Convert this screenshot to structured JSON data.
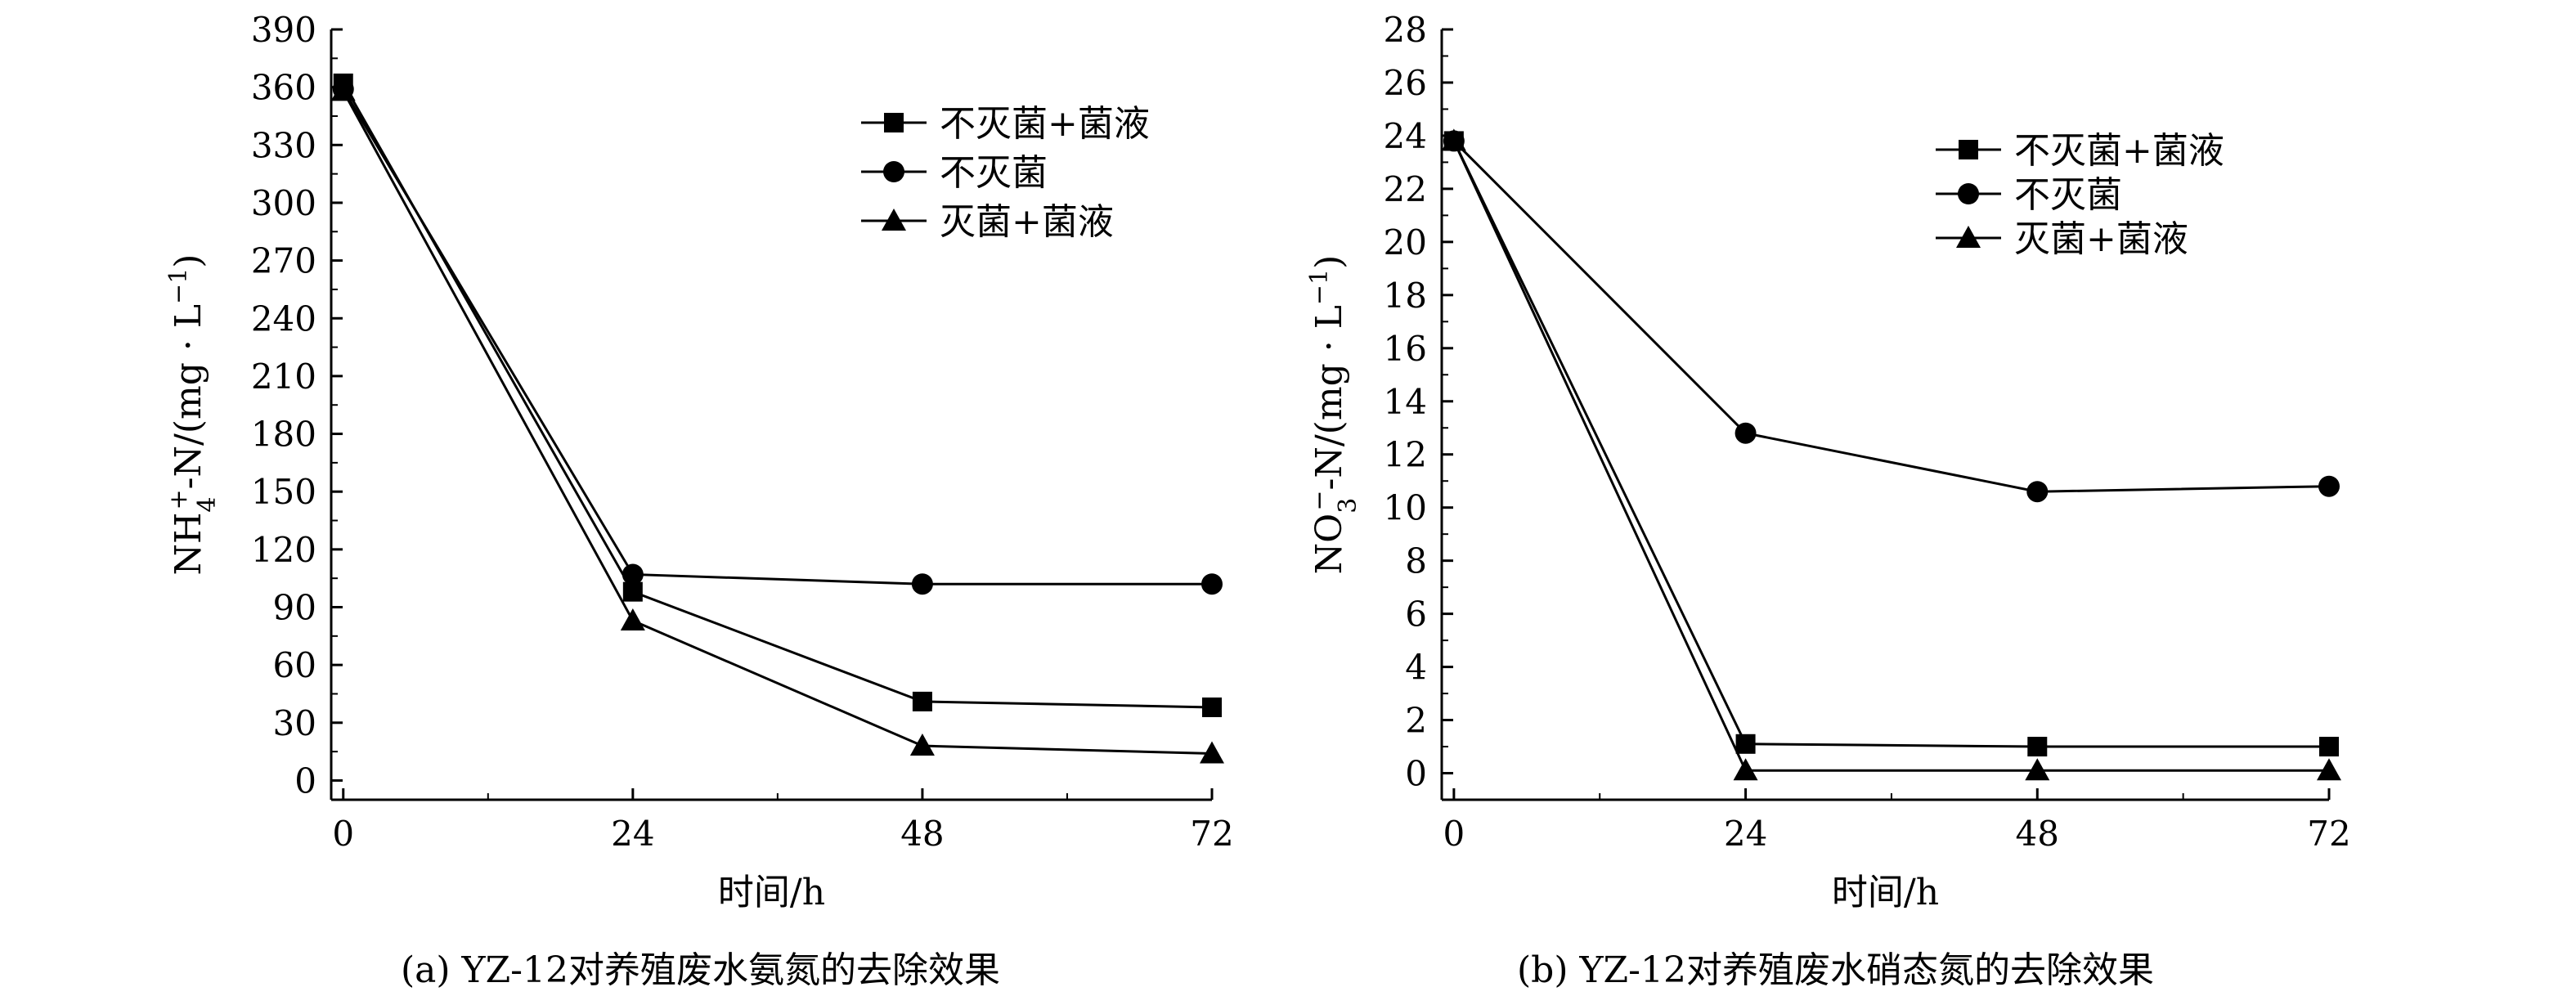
{
  "chart_data": [
    {
      "type": "line",
      "caption": "(a) YZ-12对养殖废水氨氮的去除效果",
      "xlabel": "时间/h",
      "ylabel_main": "NH",
      "ylabel_sub": "4",
      "ylabel_sup": "+",
      "ylabel_rest": "-N/(mg · L",
      "ylabel_unit_sup": "−1",
      "ylabel_close": ")",
      "xticks": [
        0,
        24,
        48,
        72
      ],
      "yticks": [
        0,
        30,
        60,
        90,
        120,
        150,
        180,
        210,
        240,
        270,
        300,
        330,
        360,
        390
      ],
      "xlim": [
        -1,
        72
      ],
      "ylim": [
        -10,
        390
      ],
      "legend_position": "top-right",
      "series": [
        {
          "name": "不灭菌+菌液",
          "marker": "square",
          "x": [
            0,
            24,
            48,
            72
          ],
          "y": [
            362,
            98,
            41,
            38
          ]
        },
        {
          "name": "不灭菌",
          "marker": "circle",
          "x": [
            0,
            24,
            48,
            72
          ],
          "y": [
            359,
            107,
            102,
            102
          ]
        },
        {
          "name": "灭菌+菌液",
          "marker": "triangle",
          "x": [
            0,
            24,
            48,
            72
          ],
          "y": [
            358,
            83,
            18,
            14
          ]
        }
      ]
    },
    {
      "type": "line",
      "caption": "(b) YZ-12对养殖废水硝态氮的去除效果",
      "xlabel": "时间/h",
      "ylabel_main": "NO",
      "ylabel_sub": "3",
      "ylabel_sup": "−",
      "ylabel_rest": "-N/(mg · L",
      "ylabel_unit_sup": "−1",
      "ylabel_close": ")",
      "xticks": [
        0,
        24,
        48,
        72
      ],
      "yticks": [
        0,
        2,
        4,
        6,
        8,
        10,
        12,
        14,
        16,
        18,
        20,
        22,
        24,
        26,
        28
      ],
      "xlim": [
        -1,
        72
      ],
      "ylim": [
        -1,
        28
      ],
      "legend_position": "top-right",
      "series": [
        {
          "name": "不灭菌+菌液",
          "marker": "square",
          "x": [
            0,
            24,
            48,
            72
          ],
          "y": [
            23.8,
            1.1,
            1.0,
            1.0
          ]
        },
        {
          "name": "不灭菌",
          "marker": "circle",
          "x": [
            0,
            24,
            48,
            72
          ],
          "y": [
            23.8,
            12.8,
            10.6,
            10.8
          ]
        },
        {
          "name": "灭菌+菌液",
          "marker": "triangle",
          "x": [
            0,
            24,
            48,
            72
          ],
          "y": [
            23.8,
            0.1,
            0.1,
            0.1
          ]
        }
      ]
    }
  ]
}
